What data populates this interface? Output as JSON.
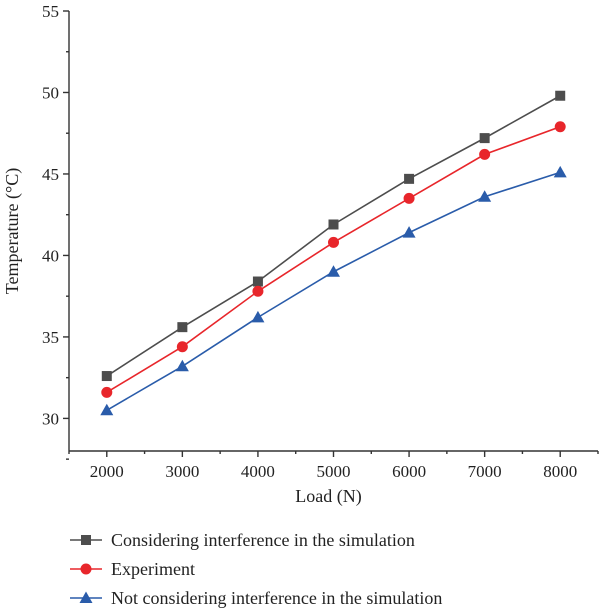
{
  "chart_data": {
    "type": "line",
    "title": "",
    "xlabel": "Load (N)",
    "ylabel": "Temperature (°C)",
    "x": [
      2000,
      3000,
      4000,
      5000,
      6000,
      7000,
      8000
    ],
    "xlim": [
      1500,
      8500
    ],
    "ylim": [
      28,
      55
    ],
    "yticks": [
      30,
      35,
      40,
      45,
      50,
      55
    ],
    "grid": false,
    "legend_position": "bottom",
    "series": [
      {
        "name": "Considering interference in the simulation",
        "color": "#4d4d4d",
        "marker": "square",
        "values": [
          32.6,
          35.6,
          38.4,
          41.9,
          44.7,
          47.2,
          49.8
        ]
      },
      {
        "name": "Experiment",
        "color": "#e8262b",
        "marker": "circle",
        "values": [
          31.6,
          34.4,
          37.8,
          40.8,
          43.5,
          46.2,
          47.9
        ]
      },
      {
        "name": "Not considering interference in the simulation",
        "color": "#2a5caa",
        "marker": "triangle",
        "values": [
          30.5,
          33.2,
          36.2,
          39.0,
          41.4,
          43.6,
          45.1
        ]
      }
    ]
  }
}
